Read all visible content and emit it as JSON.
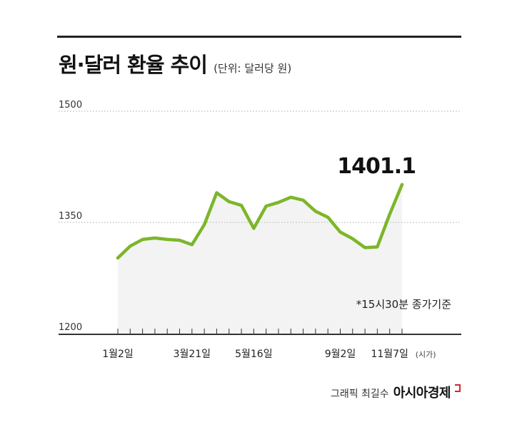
{
  "header": {
    "title": "원·달러 환율 추이",
    "unit": "(단위: 달러당 원)"
  },
  "colors": {
    "line": "#7cb629",
    "area": "#f3f3f3",
    "grid": "#bdbdbd",
    "axis": "#333333",
    "brand_mark": "#d9232e"
  },
  "chart_data": {
    "type": "area",
    "title": "원·달러 환율 추이",
    "unit": "단위: 달러당 원",
    "ylim": [
      1200,
      1500
    ],
    "yticks": [
      "1500",
      "1350",
      "1200"
    ],
    "grid": true,
    "x_tick_labels": [
      "1월2일",
      "3월21일",
      "5월16일",
      "9월2일",
      "11월7일"
    ],
    "x_unit_label": "(시가)",
    "series": [
      {
        "values": [
          1302,
          1318,
          1327,
          1329,
          1327,
          1326,
          1320,
          1347,
          1390,
          1378,
          1373,
          1342,
          1372,
          1377,
          1384,
          1380,
          1365,
          1357,
          1337,
          1328,
          1316,
          1317,
          1361,
          1401.1
        ]
      }
    ],
    "last_value_label": "1401.1",
    "note": "*15시30분 종가기준"
  },
  "footer": {
    "credit": "그래픽 최길수",
    "brand": "아시아경제"
  }
}
